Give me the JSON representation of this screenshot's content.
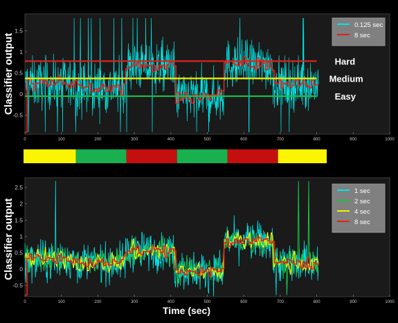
{
  "colors": {
    "page_bg": "#000000",
    "axes_bg": "#1a1a1a",
    "tick_text": "#c8c8c8",
    "legend_bg": "#808080",
    "cyan": "#00e6e6",
    "red": "#e0211a",
    "yellow": "#f2f200",
    "green": "#19c14a",
    "bar_green": "#19b04f",
    "bar_red": "#c40f0f",
    "bar_yellow": "#fbf500"
  },
  "chart_data": [
    {
      "type": "line",
      "ylabel": "Classifier output",
      "xlabel": "",
      "xlim": [
        0,
        1000
      ],
      "ylim": [
        -0.95,
        1.9
      ],
      "xticks": [
        0,
        100,
        200,
        300,
        400,
        500,
        600,
        700,
        800,
        900,
        1000
      ],
      "yticks": [
        -0.5,
        0,
        0.5,
        1,
        1.5
      ],
      "ytick_labels": [
        "-0.5",
        "0",
        "0.5",
        "1",
        "1.5"
      ],
      "legend_position": "top-right",
      "series": [
        {
          "name": "0.125 sec",
          "color": "#00e6e6",
          "window_sec": 0.125
        },
        {
          "name": "8 sec",
          "color": "#e0211a",
          "window_sec": 8
        }
      ],
      "thresholds": [
        {
          "label": "Hard",
          "value": 0.78,
          "color": "#e0211a"
        },
        {
          "label": "Medium",
          "value": 0.37,
          "color": "#f2f200"
        },
        {
          "label": "Easy",
          "value": -0.05,
          "color": "#19c14a"
        }
      ],
      "segment_means": [
        {
          "start": 0,
          "end": 140,
          "level": "Easy",
          "mean": 0.25
        },
        {
          "start": 140,
          "end": 275,
          "level": "Medium",
          "mean": 0.15
        },
        {
          "start": 275,
          "end": 410,
          "level": "Hard",
          "mean": 0.65
        },
        {
          "start": 410,
          "end": 545,
          "level": "Medium",
          "mean": -0.05
        },
        {
          "start": 545,
          "end": 680,
          "level": "Hard",
          "mean": 0.7
        },
        {
          "start": 680,
          "end": 810,
          "level": "Easy",
          "mean": 0.25
        }
      ]
    },
    {
      "type": "bar",
      "title": "",
      "segments": [
        {
          "start": 0,
          "end": 140,
          "color": "#fbf500"
        },
        {
          "start": 140,
          "end": 275,
          "color": "#19b04f"
        },
        {
          "start": 275,
          "end": 410,
          "color": "#c40f0f"
        },
        {
          "start": 410,
          "end": 545,
          "color": "#19b04f"
        },
        {
          "start": 545,
          "end": 680,
          "color": "#c40f0f"
        },
        {
          "start": 680,
          "end": 810,
          "color": "#fbf500"
        }
      ]
    },
    {
      "type": "line",
      "ylabel": "Classifier output",
      "xlabel": "Time (sec)",
      "xlim": [
        0,
        1000
      ],
      "ylim": [
        -0.85,
        2.8
      ],
      "xticks": [
        0,
        100,
        200,
        300,
        400,
        500,
        600,
        700,
        800,
        900,
        1000
      ],
      "yticks": [
        -0.5,
        0,
        0.5,
        1,
        1.5,
        2,
        2.5
      ],
      "ytick_labels": [
        "-0.5",
        "0",
        "0.5",
        "1",
        "1.5",
        "2",
        "2.5"
      ],
      "legend_position": "top-right",
      "series": [
        {
          "name": "1 sec",
          "color": "#00e6e6",
          "window_sec": 1
        },
        {
          "name": "2 sec",
          "color": "#19c14a",
          "window_sec": 2
        },
        {
          "name": "4 sec",
          "color": "#f2f200",
          "window_sec": 4
        },
        {
          "name": "8 sec",
          "color": "#e0211a",
          "window_sec": 8
        }
      ],
      "segment_means": [
        {
          "start": 0,
          "end": 140,
          "mean": 0.3
        },
        {
          "start": 140,
          "end": 275,
          "mean": 0.2
        },
        {
          "start": 275,
          "end": 410,
          "mean": 0.55
        },
        {
          "start": 410,
          "end": 545,
          "mean": -0.05
        },
        {
          "start": 545,
          "end": 680,
          "mean": 0.85
        },
        {
          "start": 680,
          "end": 810,
          "mean": 0.2
        }
      ]
    }
  ]
}
